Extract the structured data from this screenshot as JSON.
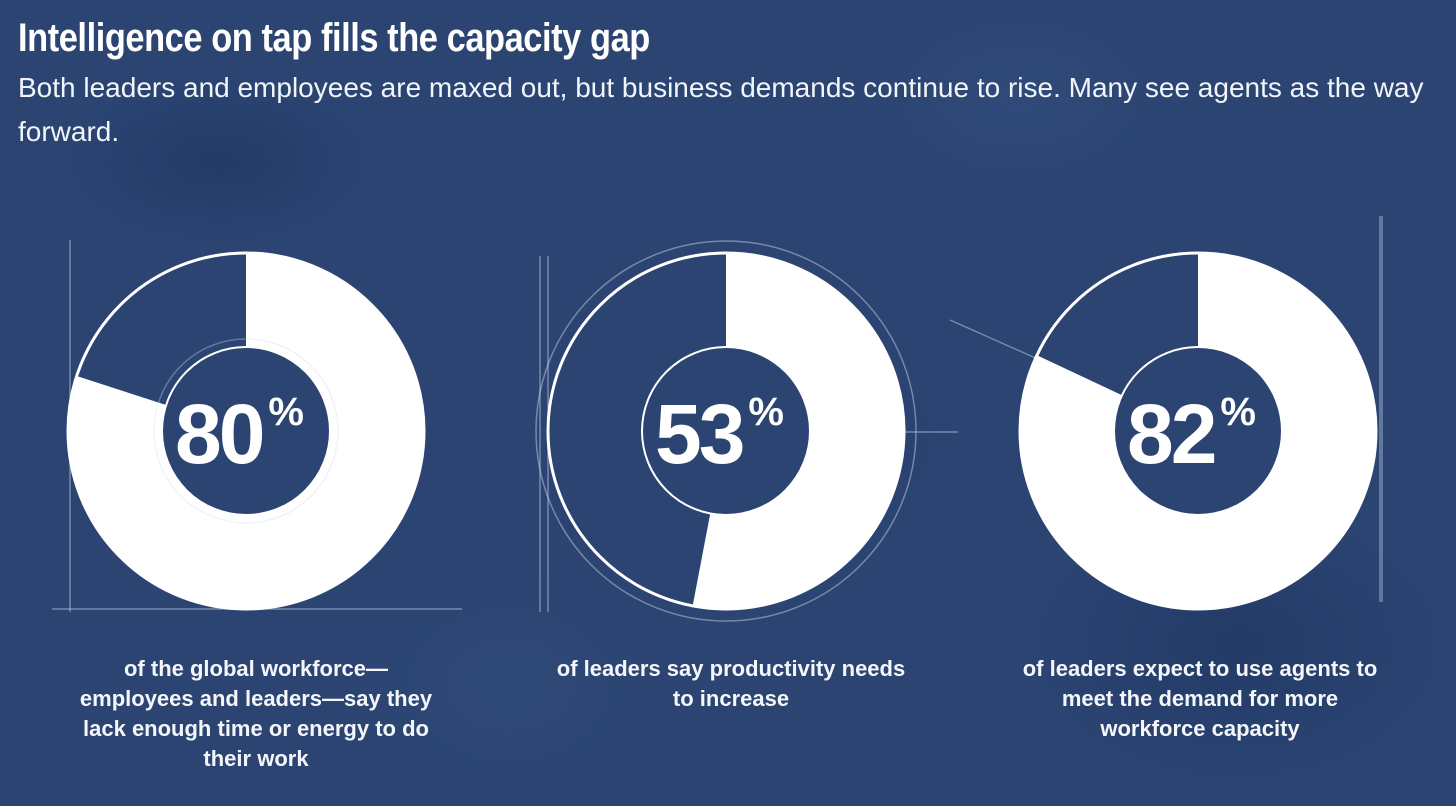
{
  "header": {
    "title": "Intelligence on tap fills the capacity gap",
    "subtitle": "Both leaders and employees are maxed out, but business demands continue to rise. Many see agents as the way forward."
  },
  "colors": {
    "background": "#2b4472",
    "fill": "#ffffff",
    "remainder": "#2b4472"
  },
  "chart_data": [
    {
      "type": "pie",
      "variant": "donut",
      "value": 80,
      "unit": "%",
      "label_number": "80",
      "label_unit": "%",
      "caption": "of the global workforce— employees and leaders—say they lack enough time or energy to do their work"
    },
    {
      "type": "pie",
      "variant": "donut",
      "value": 53,
      "unit": "%",
      "label_number": "53",
      "label_unit": "%",
      "caption": "of leaders say productivity needs to increase"
    },
    {
      "type": "pie",
      "variant": "donut",
      "value": 82,
      "unit": "%",
      "label_number": "82",
      "label_unit": "%",
      "caption": "of leaders expect to use agents to meet the demand for more workforce capacity"
    }
  ]
}
